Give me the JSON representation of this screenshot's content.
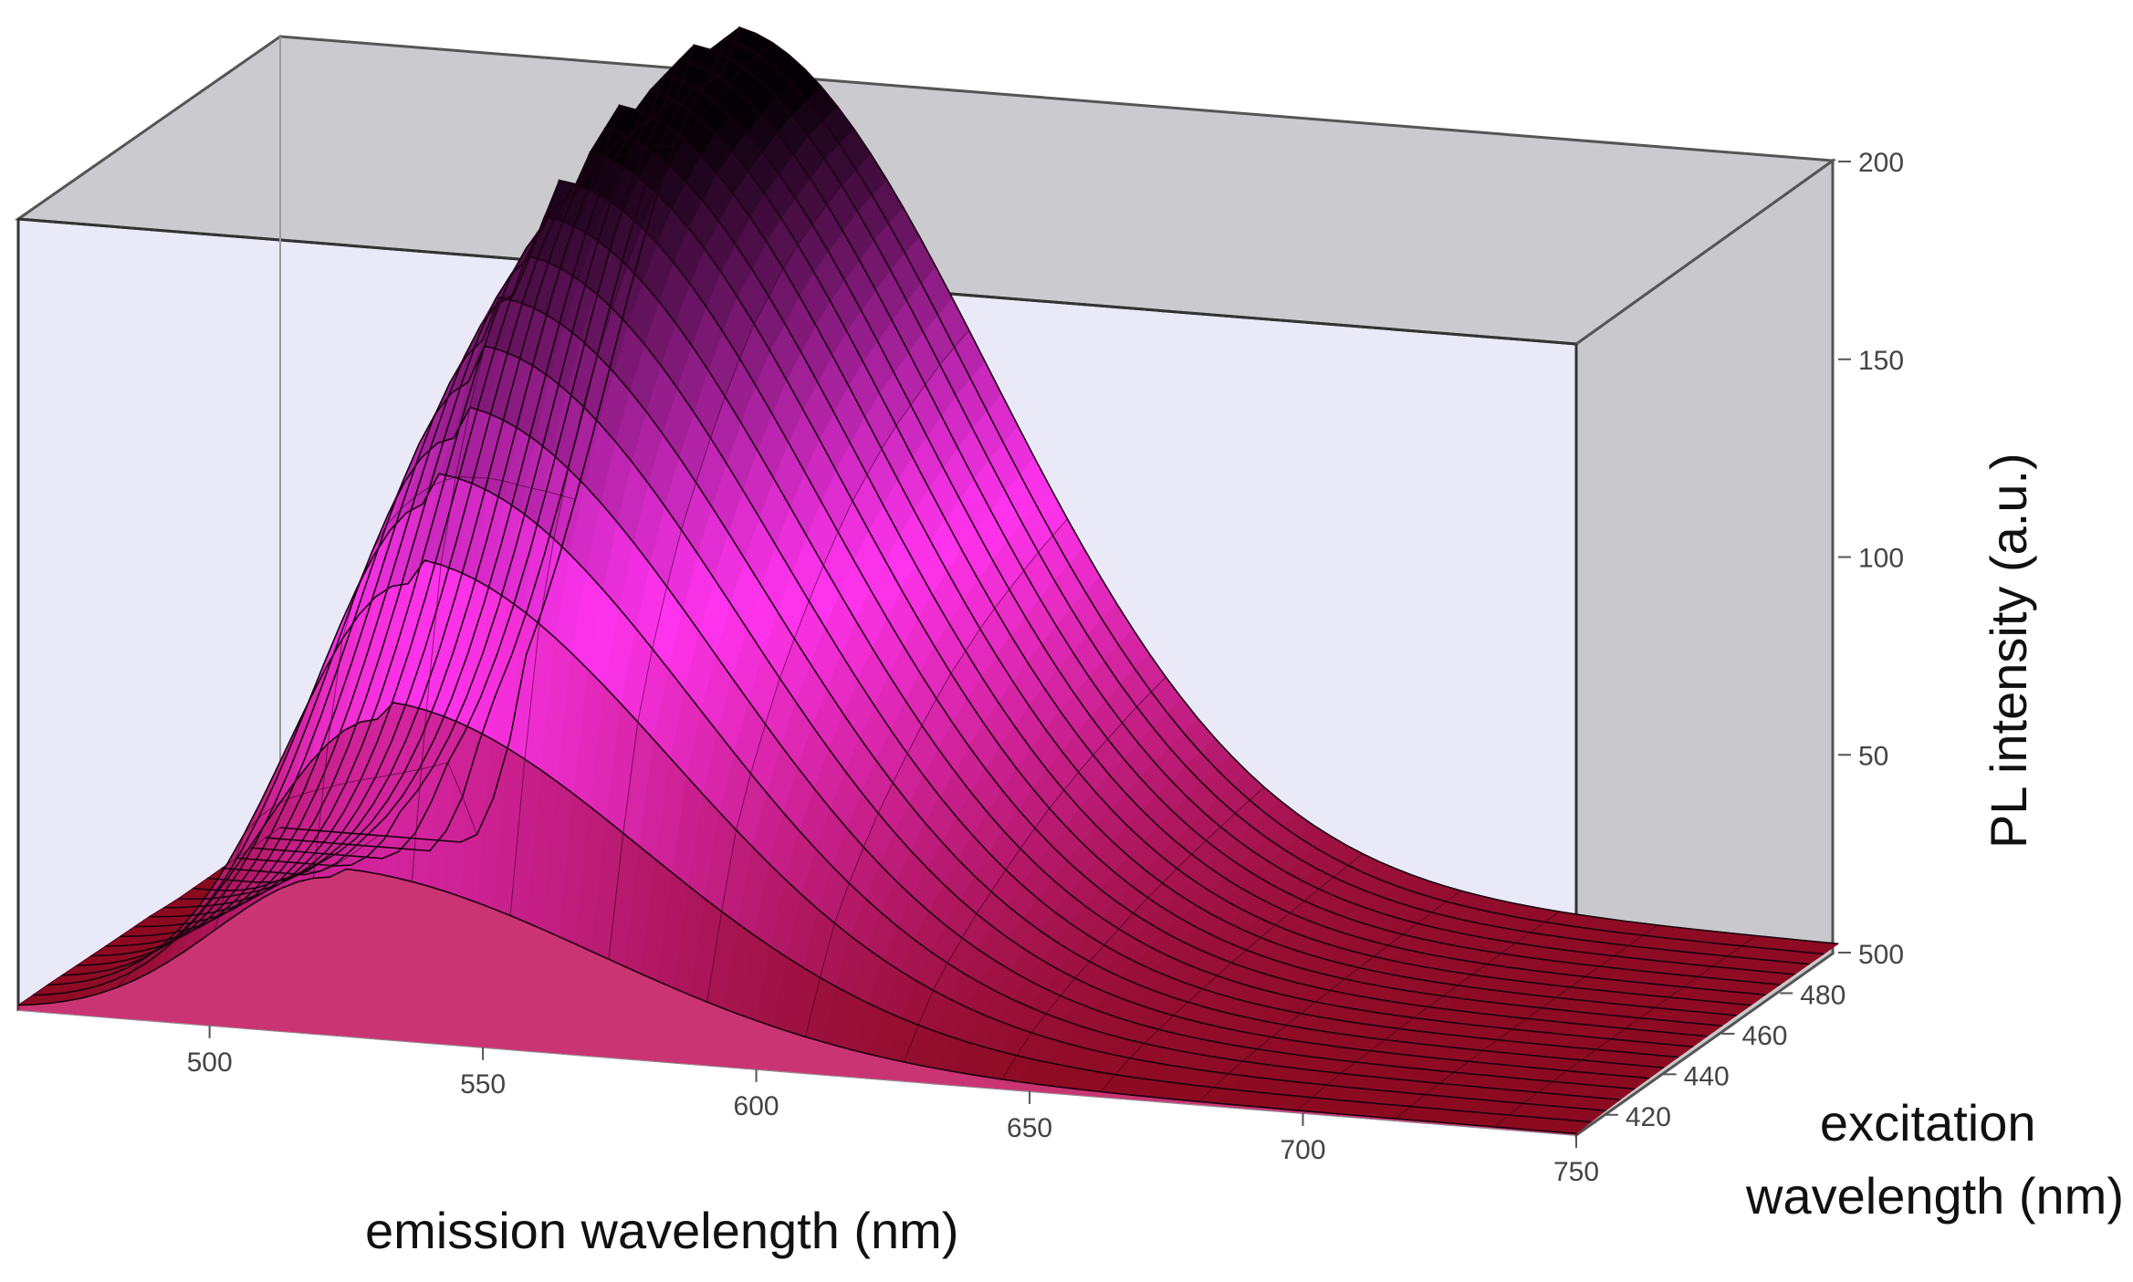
{
  "chart_data": {
    "type": "surface",
    "xlabel": "emission wavelength (nm)",
    "ylabel": "excitation\nwavelength (nm)",
    "zlabel": "PL intensity (a.u.)",
    "x_ticks": [
      500,
      550,
      600,
      650,
      700,
      750
    ],
    "y_ticks": [
      420,
      440,
      460,
      480,
      500
    ],
    "z_ticks": [
      50,
      100,
      150,
      200
    ],
    "xlim": [
      465,
      750
    ],
    "ylim": [
      410,
      500
    ],
    "zlim": [
      0,
      200
    ],
    "peak_emission_nm": [
      523,
      530,
      536,
      540,
      543,
      545,
      546,
      547,
      547,
      547,
      547,
      546
    ],
    "series": [
      {
        "excitation": 410,
        "peak": 40
      },
      {
        "excitation": 415,
        "peak": 78
      },
      {
        "excitation": 420,
        "peak": 110
      },
      {
        "excitation": 425,
        "peak": 128
      },
      {
        "excitation": 430,
        "peak": 142
      },
      {
        "excitation": 435,
        "peak": 154
      },
      {
        "excitation": 440,
        "peak": 163
      },
      {
        "excitation": 445,
        "peak": 171
      },
      {
        "excitation": 450,
        "peak": 178
      },
      {
        "excitation": 455,
        "peak": 184
      },
      {
        "excitation": 460,
        "peak": 189
      },
      {
        "excitation": 465,
        "peak": 192
      },
      {
        "excitation": 470,
        "peak": 195
      },
      {
        "excitation": 475,
        "peak": 197
      },
      {
        "excitation": 480,
        "peak": 198
      },
      {
        "excitation": 485,
        "peak": 199
      },
      {
        "excitation": 490,
        "peak": 200
      },
      {
        "excitation": 495,
        "peak": 200
      },
      {
        "excitation": 500,
        "peak": 200
      }
    ],
    "colors": {
      "back_wall": "#c8c8cc",
      "front_plane": "#e8e8f6",
      "surface_low": "#8b0a1e",
      "surface_mid": "#ff33ee",
      "surface_high": "#050005"
    }
  }
}
